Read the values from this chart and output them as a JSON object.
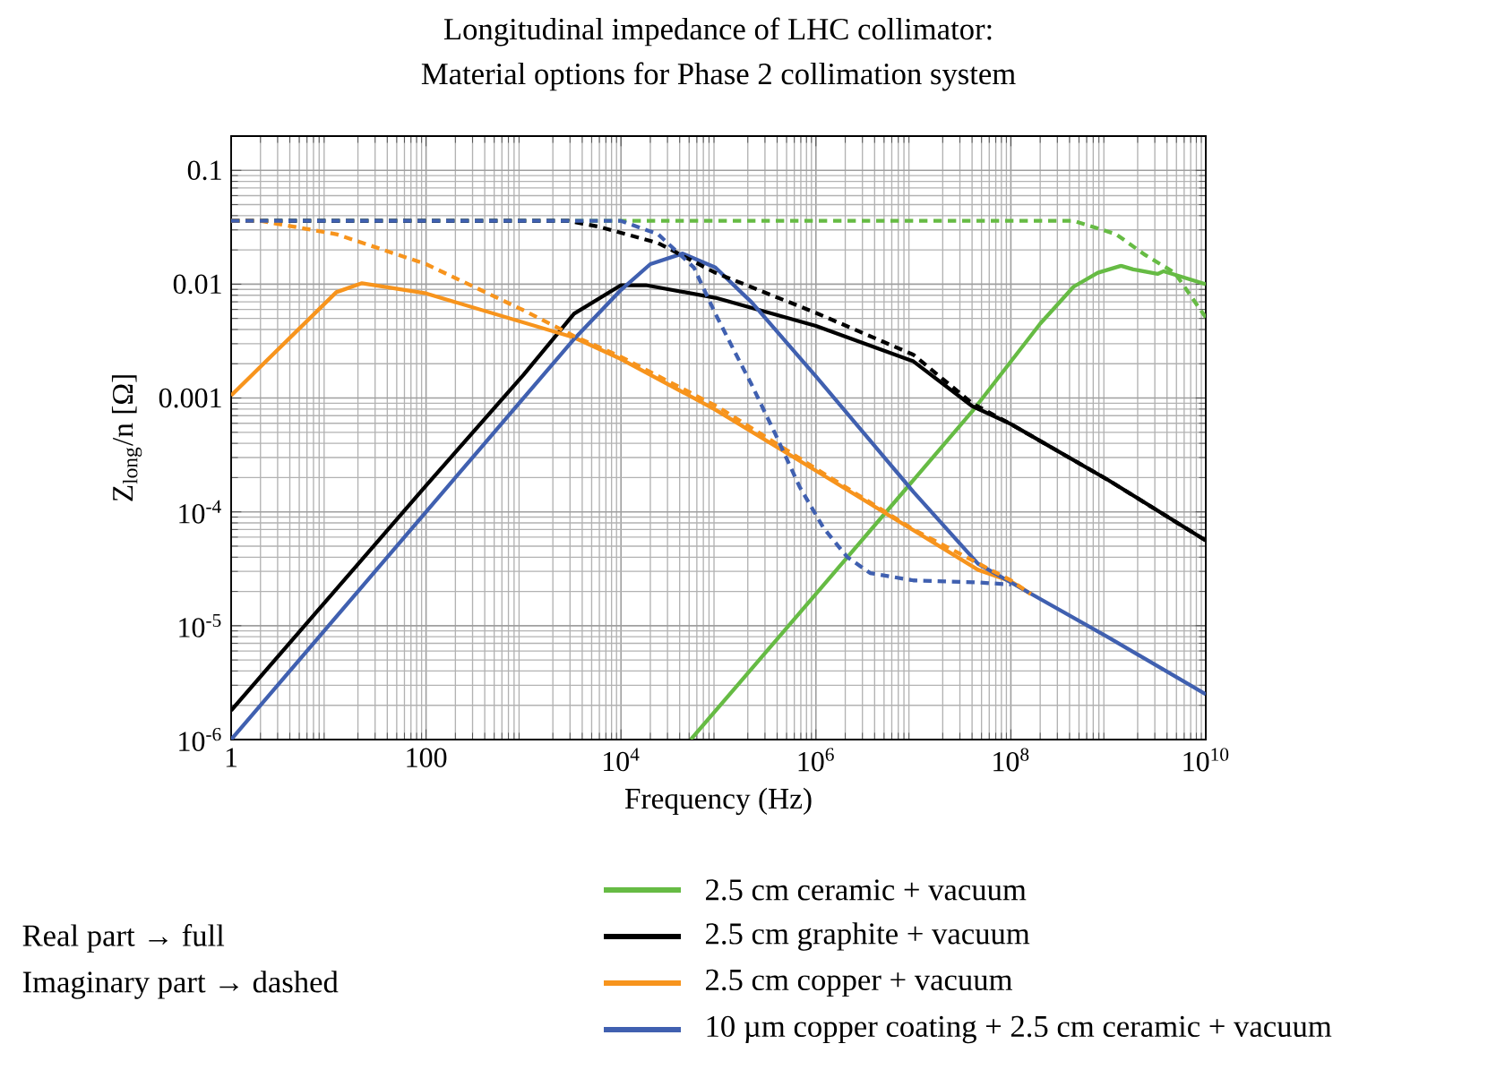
{
  "chart_data": {
    "type": "line",
    "title": "Longitudinal impedance of LHC collimator:",
    "subtitle": "Material options for Phase 2 collimation system",
    "xlabel": "Frequency (Hz)",
    "ylabel": "Z$_{long}$/n [Ω]",
    "log": "xy",
    "grid": true,
    "legend": "bottom",
    "marker": "none",
    "xlim": [
      1,
      10000000000
    ],
    "ylim": [
      1e-06,
      0.2
    ],
    "xticks": [
      1,
      100,
      {
        "value": 10000,
        "label": "10$^{4}$"
      },
      {
        "value": 1000000,
        "label": "10$^{6}$"
      },
      {
        "value": 100000000,
        "label": "10$^{8}$"
      },
      {
        "value": 10000000000,
        "label": "10$^{10}$"
      }
    ],
    "yticks": [
      {
        "value": 1e-06,
        "label": "10$^{-6}$"
      },
      {
        "value": 1e-05,
        "label": "10$^{-5}$"
      },
      {
        "value": 0.0001,
        "label": "10$^{-4}$"
      },
      0.001,
      0.01,
      0.1
    ],
    "annotations": [
      "Real part → full",
      "Imaginary part → dashed"
    ],
    "series": [
      {
        "name": "2.5 cm ceramic + vacuum",
        "color": "#66bb44",
        "line_style": "solid",
        "x": [
          52000,
          1000000,
          40000000,
          200000000,
          440000000,
          780000000,
          1350000000,
          1800000000,
          3200000000,
          3700000000,
          10000000000
        ],
        "values": [
          1e-06,
          1.9e-05,
          0.00076,
          0.0045,
          0.0095,
          0.0126,
          0.0145,
          0.0135,
          0.0123,
          0.013,
          0.01
        ]
      },
      {
        "name": "2.5 cm graphite + vacuum",
        "color": "#000000",
        "line_style": "solid",
        "x": [
          1,
          100,
          1000,
          3300,
          10000,
          18000,
          93000,
          1000000,
          10000000,
          40000000,
          100000000,
          1000000000,
          10000000000
        ],
        "values": [
          1.8e-06,
          0.00017,
          0.0016,
          0.0055,
          0.0098,
          0.0098,
          0.0076,
          0.0043,
          0.0021,
          0.00085,
          0.00059,
          0.00019,
          5.6e-05
        ]
      },
      {
        "name": "2.5 cm copper + vacuum",
        "color": "#f7941d",
        "line_style": "solid",
        "x": [
          1,
          12,
          22,
          100,
          3300,
          10000,
          93000,
          1000000,
          46000000,
          100000000,
          160000000
        ],
        "values": [
          0.00105,
          0.0085,
          0.0102,
          0.0083,
          0.0034,
          0.0022,
          0.00079,
          0.00023,
          3.1e-05,
          2.45e-05,
          1.9e-05
        ]
      },
      {
        "name": "10 µm copper coating + 2.5 cm ceramic + vacuum",
        "color": "#4060b0",
        "line_style": "solid",
        "x": [
          1,
          3200,
          10000,
          20000,
          43000,
          93000,
          220000,
          1000000,
          10000000,
          46000000,
          100000000,
          1000000000,
          10000000000
        ],
        "values": [
          1e-06,
          0.0032,
          0.0089,
          0.015,
          0.0186,
          0.014,
          0.0069,
          0.00155,
          0.00015,
          3.5e-05,
          2.4e-05,
          7.9e-06,
          2.5e-06
        ]
      },
      {
        "color": "#66bb44",
        "line_style": "dashed",
        "x": [
          1,
          440000000,
          1200000000,
          2400000000,
          4800000000,
          10000000000
        ],
        "values": [
          0.036,
          0.036,
          0.0275,
          0.018,
          0.0126,
          0.0051
        ]
      },
      {
        "color": "#000000",
        "line_style": "dashed",
        "x": [
          1,
          2900,
          5900,
          24000,
          93000,
          1000000,
          10000000,
          40000000,
          100000000,
          1000000000,
          10000000000
        ],
        "values": [
          0.036,
          0.036,
          0.032,
          0.023,
          0.0126,
          0.0056,
          0.0024,
          0.0009,
          0.00059,
          0.00019,
          5.6e-05
        ]
      },
      {
        "color": "#f7941d",
        "line_style": "dashed",
        "x": [
          1,
          2,
          12,
          100,
          1000,
          3300,
          10000,
          100000,
          1000000,
          10000000,
          100000000,
          160000000
        ],
        "values": [
          0.036,
          0.036,
          0.0275,
          0.015,
          0.0059,
          0.0035,
          0.0023,
          0.00083,
          0.00024,
          7e-05,
          2.5e-05,
          1.9e-05
        ]
      },
      {
        "color": "#4060b0",
        "line_style": "dashed",
        "x": [
          1,
          10000,
          24000,
          56000,
          93000,
          145000,
          220000,
          380000,
          680000,
          1200000,
          2100000,
          3600000,
          10000000,
          46000000,
          100000000
        ],
        "values": [
          0.036,
          0.036,
          0.0275,
          0.014,
          0.0055,
          0.0026,
          0.0013,
          0.00049,
          0.000166,
          7.2e-05,
          4e-05,
          2.9e-05,
          2.5e-05,
          2.4e-05,
          2.3e-05
        ]
      }
    ]
  }
}
